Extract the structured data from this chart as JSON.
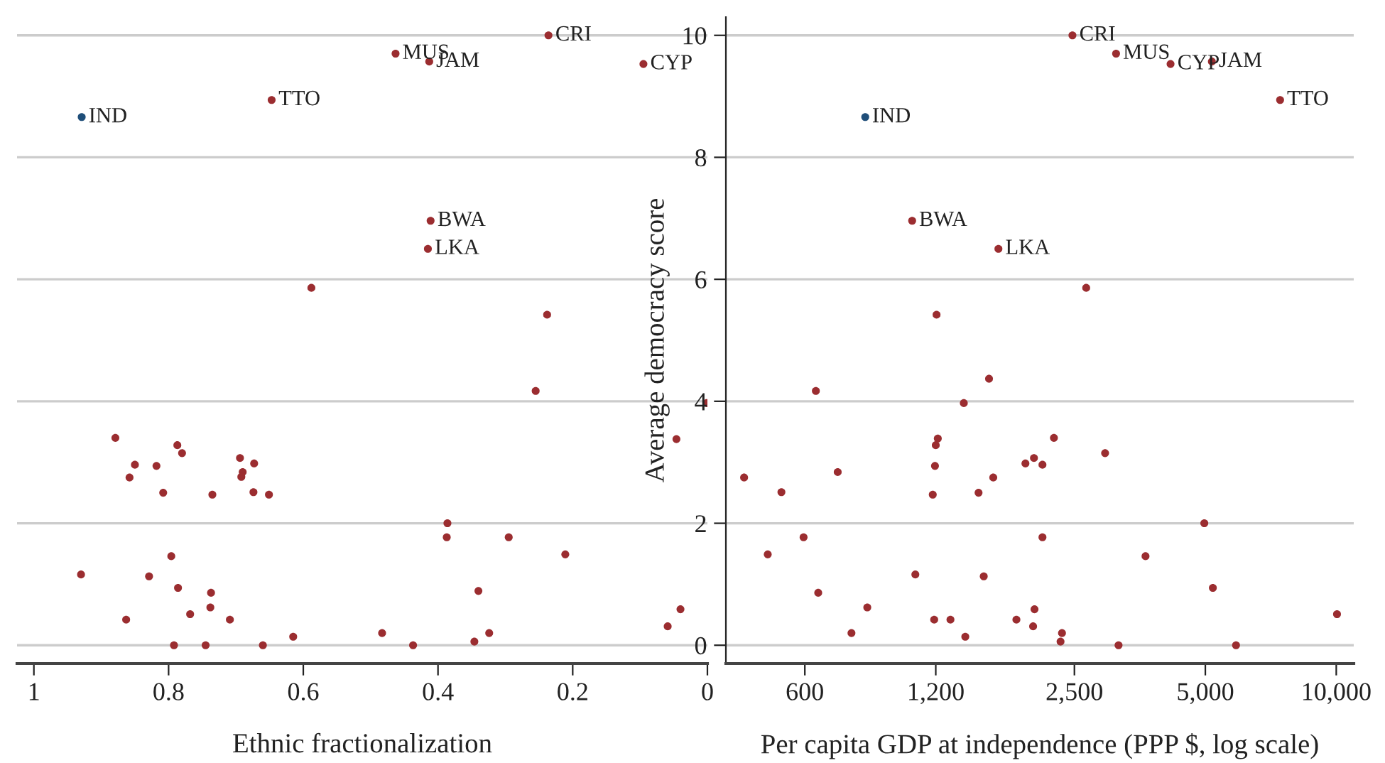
{
  "chart_data": [
    {
      "type": "scatter",
      "xlabel": "Ethnic fractionalization",
      "xlim": [
        1.025,
        0
      ],
      "xticks": [
        1,
        0.8,
        0.6,
        0.4,
        0.2,
        0
      ],
      "ylim": [
        -0.3,
        10.3
      ],
      "yticks": [
        0,
        2,
        4,
        6,
        8,
        10
      ],
      "tick_labels": "x",
      "grid": "y",
      "marker": "circle",
      "series": [
        {
          "color": "#1f4e79",
          "x": [
            0.929
          ],
          "values": [
            8.66
          ]
        },
        {
          "color": "#9b2d30",
          "x": [
            0.647,
            0.463,
            0.413,
            0.236,
            0.095,
            0.411,
            0.415,
            0.588,
            0.238,
            0.255,
            0.001,
            0.046,
            0.879,
            0.787,
            0.78,
            0.85,
            0.818,
            0.694,
            0.673,
            0.858,
            0.69,
            0.692,
            0.808,
            0.735,
            0.674,
            0.651,
            0.386,
            0.387,
            0.295,
            0.211,
            0.796,
            0.93,
            0.829,
            0.786,
            0.737,
            0.34,
            0.738,
            0.04,
            0.768,
            0.863,
            0.709,
            0.059,
            0.615,
            0.483,
            0.324,
            0.346,
            0.792,
            0.745,
            0.66,
            0.437
          ],
          "values": [
            8.94,
            9.7,
            9.57,
            10.0,
            9.53,
            6.96,
            6.5,
            5.86,
            5.42,
            4.17,
            3.97,
            3.38,
            3.4,
            3.28,
            3.15,
            2.96,
            2.94,
            3.07,
            2.98,
            2.75,
            2.84,
            2.76,
            2.5,
            2.47,
            2.51,
            2.47,
            2.0,
            1.77,
            1.77,
            1.49,
            1.46,
            1.16,
            1.13,
            0.94,
            0.86,
            0.89,
            0.62,
            0.59,
            0.51,
            0.42,
            0.42,
            0.31,
            0.14,
            0.2,
            0.2,
            0.06,
            0,
            0,
            0,
            0
          ]
        }
      ],
      "annotations": [
        {
          "text": "IND",
          "x": 0.929,
          "y": 8.66
        },
        {
          "text": "TTO",
          "x": 0.647,
          "y": 8.94
        },
        {
          "text": "MUS",
          "x": 0.463,
          "y": 9.7
        },
        {
          "text": "JAM",
          "x": 0.413,
          "y": 9.57
        },
        {
          "text": "CRI",
          "x": 0.236,
          "y": 10.0
        },
        {
          "text": "CYP",
          "x": 0.095,
          "y": 9.53
        },
        {
          "text": "BWA",
          "x": 0.411,
          "y": 6.96
        },
        {
          "text": "LKA",
          "x": 0.415,
          "y": 6.5
        }
      ]
    },
    {
      "type": "scatter",
      "xlabel": "Per capita GDP at independence (PPP $, log scale)",
      "ylabel": "Average democracy score",
      "log": "x",
      "xlim": [
        395,
        10970
      ],
      "xticks": [
        {
          "value": 600,
          "label": "600"
        },
        {
          "value": 1200,
          "label": "1,200"
        },
        {
          "value": 2500,
          "label": "2,500"
        },
        {
          "value": 5000,
          "label": "5,000"
        },
        {
          "value": 10000,
          "label": "10,000"
        }
      ],
      "ylim": [
        -0.3,
        10.3
      ],
      "yticks": [
        0,
        2,
        4,
        6,
        8,
        10
      ],
      "grid": "y",
      "marker": "circle",
      "series": [
        {
          "color": "#1f4e79",
          "x": [
            826
          ],
          "values": [
            8.66
          ]
        },
        {
          "color": "#9b2d30",
          "x": [
            1059,
            1672,
            2474,
            3117,
            4159,
            5176,
            7428,
            2661,
            1205,
            636,
            1591,
            1392,
            1213,
            1200,
            1195,
            1181,
            2243,
            2941,
            2018,
            1929,
            2111,
            1627,
            1505,
            435,
            530,
            714,
            596,
            493,
            2111,
            4973,
            3643,
            1077,
            1547,
            644,
            5203,
            835,
            2024,
            10040,
            1190,
            1297,
            1839,
            2009,
            768,
            1403,
            2341,
            2323,
            3158,
            5882
          ],
          "values": [
            6.96,
            6.5,
            10.0,
            9.7,
            9.53,
            9.57,
            8.94,
            5.86,
            5.42,
            4.17,
            4.37,
            3.97,
            3.39,
            3.28,
            2.94,
            2.47,
            3.4,
            3.15,
            3.07,
            2.98,
            2.96,
            2.75,
            2.5,
            2.75,
            2.51,
            2.84,
            1.77,
            1.49,
            1.77,
            2.0,
            1.46,
            1.16,
            1.13,
            0.86,
            0.94,
            0.62,
            0.59,
            0.51,
            0.42,
            0.42,
            0.42,
            0.31,
            0.2,
            0.14,
            0.2,
            0.06,
            0,
            0
          ]
        }
      ],
      "annotations": [
        {
          "text": "IND",
          "x": 826,
          "y": 8.66
        },
        {
          "text": "BWA",
          "x": 1059,
          "y": 6.96
        },
        {
          "text": "LKA",
          "x": 1672,
          "y": 6.5
        },
        {
          "text": "CRI",
          "x": 2474,
          "y": 10.0
        },
        {
          "text": "MUS",
          "x": 3117,
          "y": 9.7
        },
        {
          "text": "CYP",
          "x": 4159,
          "y": 9.53
        },
        {
          "text": "JAM",
          "x": 5176,
          "y": 9.57
        },
        {
          "text": "TTO",
          "x": 7428,
          "y": 8.94
        }
      ]
    }
  ]
}
